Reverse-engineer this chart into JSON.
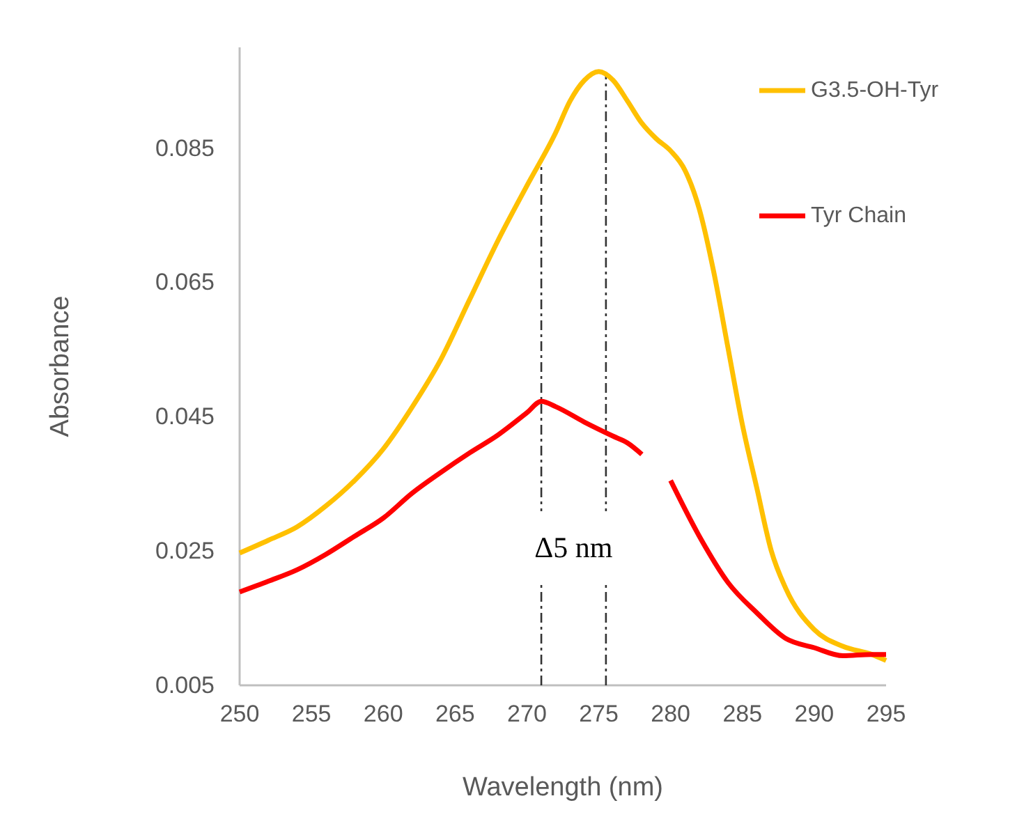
{
  "chart_data": {
    "type": "line",
    "xlabel": "Wavelength (nm)",
    "ylabel": "Absorbance",
    "xlim": [
      250,
      295
    ],
    "xticks": [
      250,
      255,
      260,
      265,
      270,
      275,
      280,
      285,
      290,
      295
    ],
    "ylim": [
      0.005,
      0.1
    ],
    "yticks": [
      0.005,
      0.025,
      0.045,
      0.065,
      0.085
    ],
    "grid": false,
    "legend": "top right",
    "line_style": "solid",
    "annotations": [
      "Δ5 nm"
    ],
    "ref_lines": [
      {
        "axis": "x",
        "value": 271,
        "color": "#333333",
        "line_style": "dashed"
      },
      {
        "axis": "x",
        "value": 275.5,
        "color": "#333333",
        "line_style": "dashed"
      }
    ],
    "series": [
      {
        "name": "G3.5-OH-Tyr",
        "color": "#ffc000",
        "x": [
          250,
          252,
          254,
          256,
          258,
          260,
          262,
          264,
          266,
          268,
          270,
          272,
          273,
          274,
          275,
          276,
          277,
          278,
          279,
          280,
          281,
          282,
          283,
          284,
          285,
          286,
          287,
          288,
          290,
          292,
          294,
          295
        ],
        "values": [
          0.0247,
          0.0266,
          0.0286,
          0.0317,
          0.0355,
          0.0402,
          0.0464,
          0.0535,
          0.0624,
          0.0713,
          0.0794,
          0.0873,
          0.092,
          0.0951,
          0.0964,
          0.0951,
          0.092,
          0.0887,
          0.0864,
          0.0846,
          0.0817,
          0.0759,
          0.0666,
          0.0552,
          0.0438,
          0.0344,
          0.0251,
          0.0195,
          0.0133,
          0.0108,
          0.0096,
          0.0087
        ]
      },
      {
        "name": "Tyr Chain",
        "color": "#ff0000",
        "x": [
          250,
          252,
          254,
          256,
          258,
          260,
          262,
          264,
          266,
          268,
          270,
          271,
          272,
          274,
          276,
          277,
          278,
          279,
          280,
          282,
          284,
          286,
          288,
          290,
          292,
          294,
          295
        ],
        "values": [
          0.0189,
          0.0205,
          0.0222,
          0.0245,
          0.0272,
          0.0299,
          0.0336,
          0.0367,
          0.0396,
          0.0423,
          0.0456,
          0.0473,
          0.0465,
          0.0442,
          0.0421,
          0.0411,
          0.0394,
          null,
          0.0355,
          0.0272,
          0.0203,
          0.0158,
          0.012,
          0.0106,
          0.0094,
          0.0096,
          0.0096
        ]
      }
    ]
  }
}
